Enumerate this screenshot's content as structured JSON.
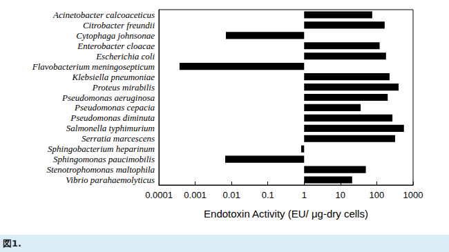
{
  "chart_data": {
    "type": "bar",
    "orientation": "horizontal",
    "log": "x",
    "categories": [
      "Acinetobacter calcoaceticus",
      "Citrobacter freundii",
      "Cytophaga johnsonae",
      "Enterobacter cloacae",
      "Escherichia coli",
      "Flavobacterium meningosepticum",
      "Klebsiella pneumoniae",
      "Proteus mirabilis",
      "Pseudomonas aeruginosa",
      "Pseudomonas cepacia",
      "Pseudomonas diminuta",
      "Salmonella typhimurium",
      "Serratia marcescens",
      "Sphingobacterium heparinum",
      "Sphingomonas paucimobilis",
      "Stenotrophomonas maltophila",
      "Vibrio parahaemolyticus"
    ],
    "values": [
      75,
      165,
      0.007,
      120,
      180,
      0.00037,
      225,
      400,
      200,
      36,
      270,
      560,
      320,
      0.83,
      0.0067,
      50,
      21
    ],
    "color": "#000000",
    "xlabel": "Endotoxin Activity (EU/ μg-dry cells)",
    "xlim": [
      0.0001,
      1000
    ],
    "xticks": [
      0.0001,
      0.001,
      0.01,
      0.1,
      1,
      10,
      100,
      1000
    ],
    "grid": false,
    "caption": "図1."
  }
}
